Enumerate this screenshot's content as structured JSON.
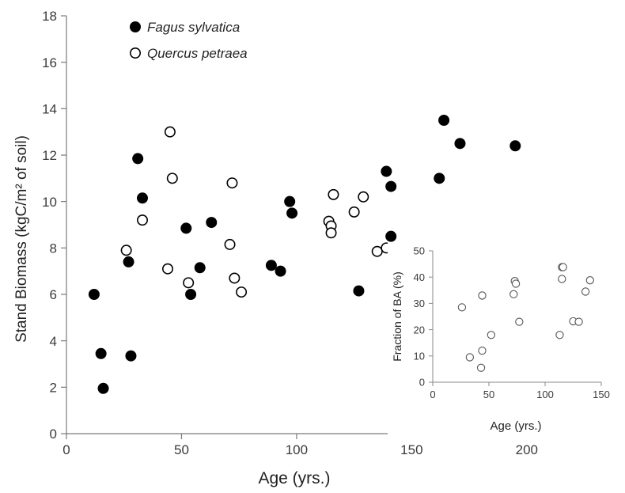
{
  "chart_data": [
    {
      "type": "scatter",
      "title": "",
      "xlabel": "Age (yrs.)",
      "ylabel": "Stand Biomass (kgC/m² of soil)",
      "xlim": [
        0,
        220
      ],
      "ylim": [
        0,
        18
      ],
      "xticks": [
        "0",
        "50",
        "100",
        "150",
        "200"
      ],
      "yticks": [
        "0",
        "2",
        "4",
        "6",
        "8",
        "10",
        "12",
        "14",
        "16",
        "18"
      ],
      "legend_position": "top-left",
      "series": [
        {
          "name": "Fagus sylvatica",
          "marker": "filled-circle",
          "color": "#000000",
          "points": [
            [
              12,
              6.0
            ],
            [
              15,
              3.45
            ],
            [
              16,
              1.95
            ],
            [
              27,
              7.4
            ],
            [
              28,
              3.35
            ],
            [
              31,
              11.85
            ],
            [
              33,
              10.15
            ],
            [
              52,
              8.85
            ],
            [
              54,
              6.0
            ],
            [
              58,
              7.15
            ],
            [
              63,
              9.1
            ],
            [
              89,
              7.25
            ],
            [
              93,
              7.0
            ],
            [
              97,
              10.0
            ],
            [
              98,
              9.5
            ],
            [
              127,
              6.15
            ],
            [
              139,
              11.3
            ],
            [
              141,
              10.65
            ],
            [
              141,
              8.5
            ],
            [
              162,
              11.0
            ],
            [
              164,
              13.5
            ],
            [
              171,
              12.5
            ],
            [
              195,
              12.4
            ]
          ]
        },
        {
          "name": "Quercus petraea",
          "marker": "open-circle",
          "color": "#000000",
          "points": [
            [
              26,
              7.9
            ],
            [
              33,
              9.2
            ],
            [
              44,
              7.1
            ],
            [
              45,
              13.0
            ],
            [
              46,
              11.0
            ],
            [
              53,
              6.5
            ],
            [
              71,
              8.15
            ],
            [
              72,
              10.8
            ],
            [
              73,
              6.7
            ],
            [
              76,
              6.1
            ],
            [
              114,
              9.15
            ],
            [
              115,
              8.95
            ],
            [
              115,
              8.65
            ],
            [
              116,
              10.3
            ],
            [
              125,
              9.55
            ],
            [
              129,
              10.2
            ],
            [
              135,
              7.85
            ],
            [
              139,
              8.0
            ]
          ]
        }
      ]
    },
    {
      "type": "scatter",
      "title": "",
      "xlabel": "Age (yrs.)",
      "ylabel": "Fraction of BA (%)",
      "xlim": [
        0,
        150
      ],
      "ylim": [
        0,
        50
      ],
      "xticks": [
        "0",
        "50",
        "100",
        "150"
      ],
      "yticks": [
        "0",
        "10",
        "20",
        "30",
        "40",
        "50"
      ],
      "series": [
        {
          "name": "",
          "marker": "open-circle",
          "color": "#555555",
          "points": [
            [
              26,
              28.5
            ],
            [
              33,
              9.5
            ],
            [
              43,
              5.5
            ],
            [
              44,
              12.0
            ],
            [
              44,
              33.0
            ],
            [
              52,
              18.0
            ],
            [
              72,
              33.5
            ],
            [
              73,
              38.5
            ],
            [
              74,
              37.5
            ],
            [
              77,
              23.0
            ],
            [
              113,
              18.0
            ],
            [
              115,
              43.8
            ],
            [
              115,
              39.3
            ],
            [
              116,
              43.8
            ],
            [
              125,
              23.2
            ],
            [
              130,
              23.0
            ],
            [
              136,
              34.5
            ],
            [
              140,
              38.8
            ]
          ]
        }
      ]
    }
  ]
}
